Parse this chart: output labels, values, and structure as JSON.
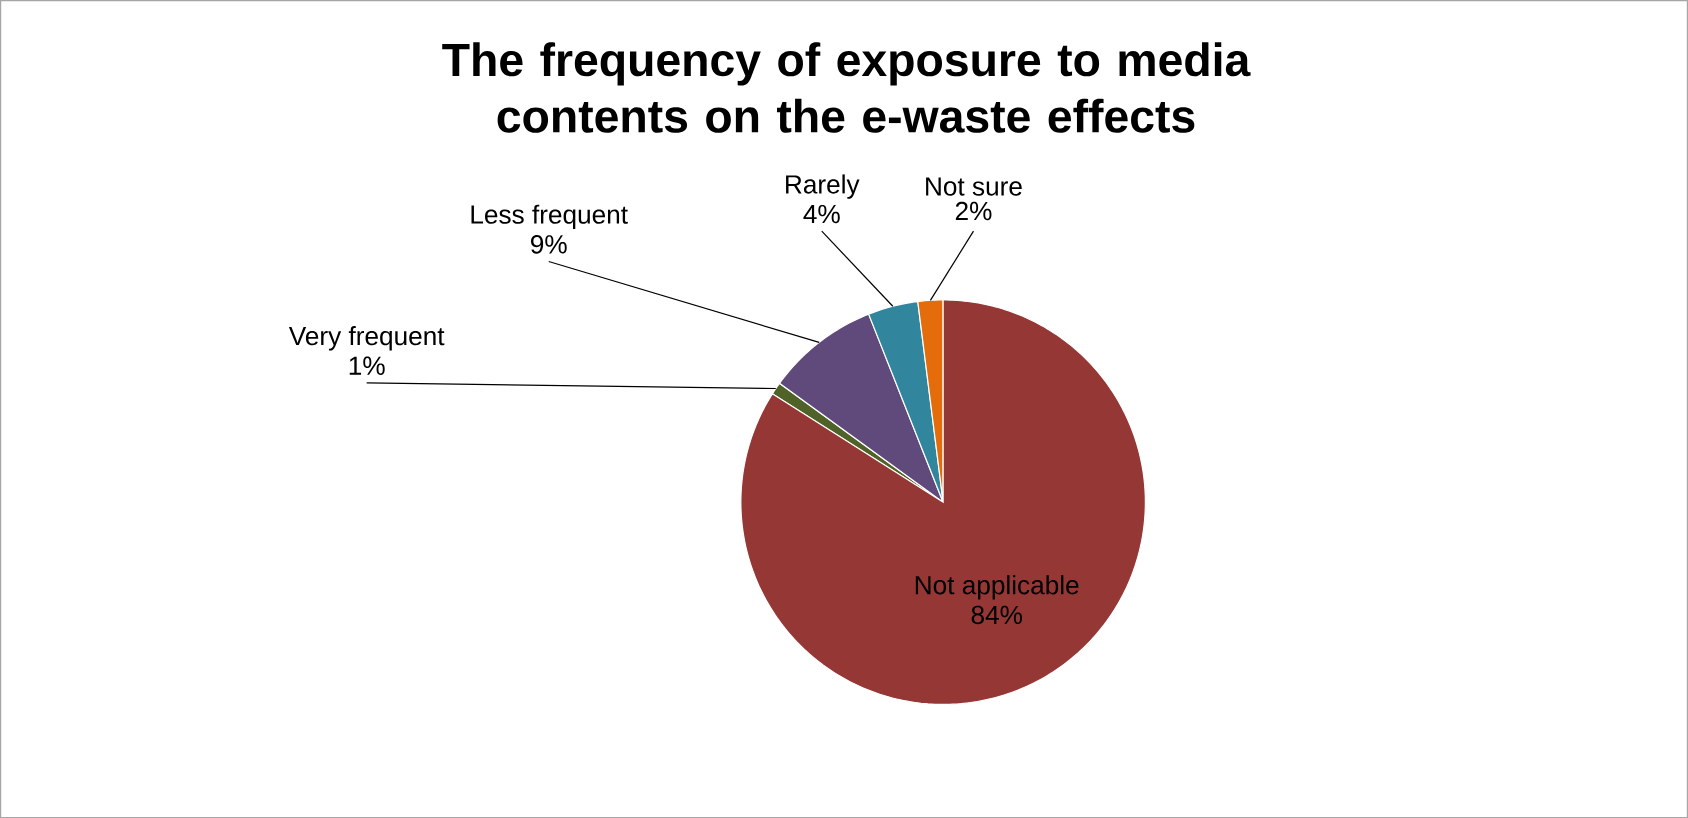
{
  "chart_data": {
    "type": "pie",
    "title": "The frequency of exposure to media contents on the e-waste effects",
    "categories": [
      "Very frequent",
      "Less frequent",
      "Rarely",
      "Not sure",
      "Not applicable"
    ],
    "values": [
      1,
      9,
      4,
      2,
      84
    ],
    "value_labels": [
      "1%",
      "9%",
      "4%",
      "2%",
      "84%"
    ],
    "colors": [
      "#4f6228",
      "#604a7b",
      "#31859c",
      "#e46c0a",
      "#953735"
    ]
  }
}
